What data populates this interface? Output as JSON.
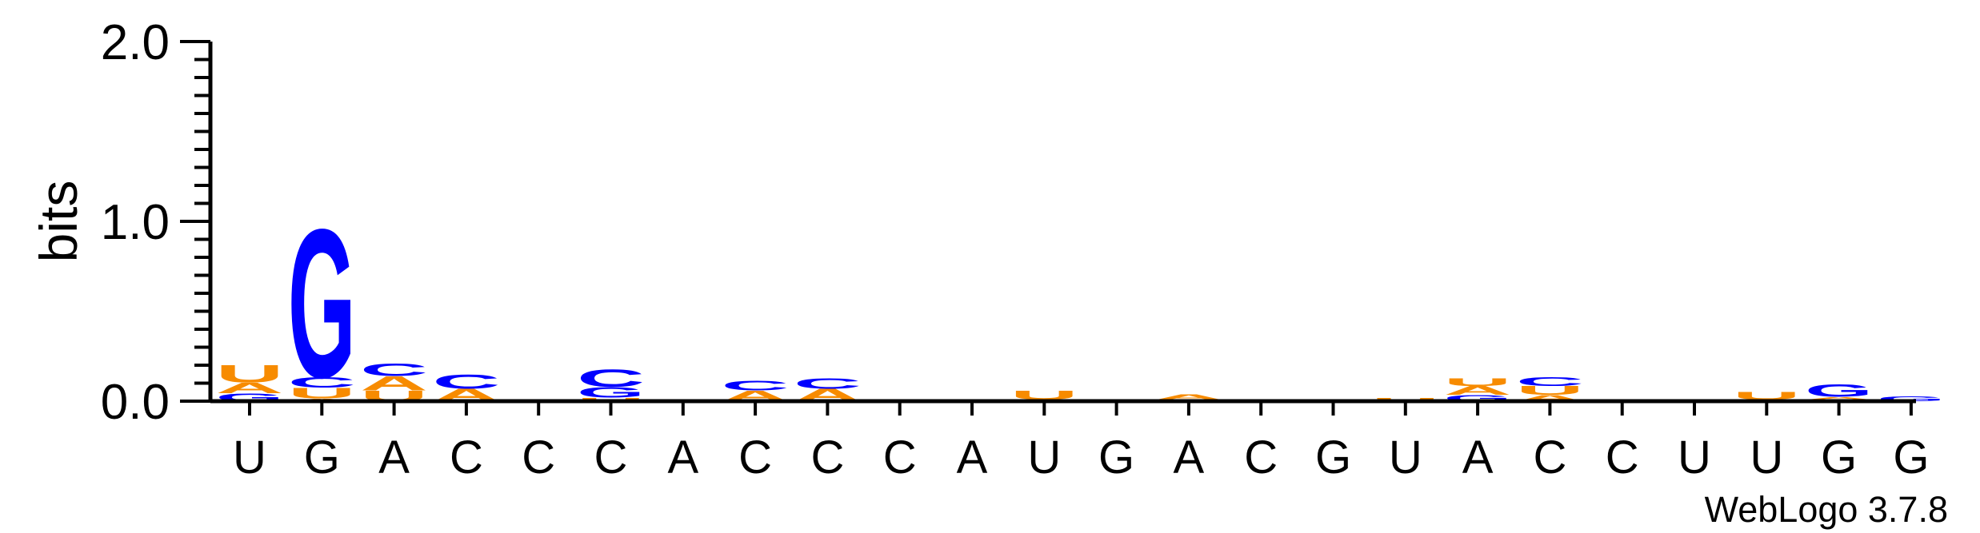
{
  "chart_data": {
    "type": "sequence-logo",
    "ylabel": "bits",
    "ylim": [
      0,
      2.0
    ],
    "y_ticks": [
      "0.0",
      "1.0",
      "2.0"
    ],
    "y_tick_values": [
      0,
      1,
      2
    ],
    "x_ticks": [
      "U",
      "G",
      "A",
      "C",
      "C",
      "C",
      "A",
      "C",
      "C",
      "C",
      "A",
      "U",
      "G",
      "A",
      "C",
      "G",
      "U",
      "A",
      "C",
      "C",
      "U",
      "U",
      "G",
      "G"
    ],
    "credit": "WebLogo 3.7.8",
    "colors": {
      "A": "#f78b00",
      "U": "#f78b00",
      "G": "#0000ff",
      "C": "#0000ff"
    },
    "positions": [
      [
        {
          "letter": "G",
          "height": 0.045
        },
        {
          "letter": "A",
          "height": 0.06
        },
        {
          "letter": "U",
          "height": 0.1
        }
      ],
      [
        {
          "letter": "A",
          "height": 0.015
        },
        {
          "letter": "U",
          "height": 0.06
        },
        {
          "letter": "C",
          "height": 0.06
        },
        {
          "letter": "G",
          "height": 0.85
        }
      ],
      [
        {
          "letter": "U",
          "height": 0.06
        },
        {
          "letter": "A",
          "height": 0.08
        },
        {
          "letter": "C",
          "height": 0.07
        }
      ],
      [
        {
          "letter": "A",
          "height": 0.07
        },
        {
          "letter": "C",
          "height": 0.08
        }
      ],
      [],
      [
        {
          "letter": "A",
          "height": 0.01
        },
        {
          "letter": "U",
          "height": 0.01
        },
        {
          "letter": "G",
          "height": 0.06
        },
        {
          "letter": "C",
          "height": 0.1
        }
      ],
      [],
      [
        {
          "letter": "A",
          "height": 0.06
        },
        {
          "letter": "C",
          "height": 0.055
        }
      ],
      [
        {
          "letter": "A",
          "height": 0.07
        },
        {
          "letter": "C",
          "height": 0.06
        }
      ],
      [],
      [],
      [
        {
          "letter": "A",
          "height": 0.01
        },
        {
          "letter": "U",
          "height": 0.05
        }
      ],
      [],
      [
        {
          "letter": "U",
          "height": 0.008
        },
        {
          "letter": "A",
          "height": 0.03
        }
      ],
      [],
      [],
      [
        {
          "letter": "A",
          "height": 0.01
        },
        {
          "letter": "U",
          "height": 0.01
        }
      ],
      [
        {
          "letter": "G",
          "height": 0.035
        },
        {
          "letter": "A",
          "height": 0.05
        },
        {
          "letter": "U",
          "height": 0.045
        }
      ],
      [
        {
          "letter": "A",
          "height": 0.035
        },
        {
          "letter": "U",
          "height": 0.05
        },
        {
          "letter": "C",
          "height": 0.05
        }
      ],
      [],
      [],
      [
        {
          "letter": "A",
          "height": 0.01
        },
        {
          "letter": "U",
          "height": 0.045
        }
      ],
      [
        {
          "letter": "U",
          "height": 0.01
        },
        {
          "letter": "A",
          "height": 0.015
        },
        {
          "letter": "G",
          "height": 0.07
        }
      ],
      [
        {
          "letter": "G",
          "height": 0.025
        }
      ]
    ]
  }
}
